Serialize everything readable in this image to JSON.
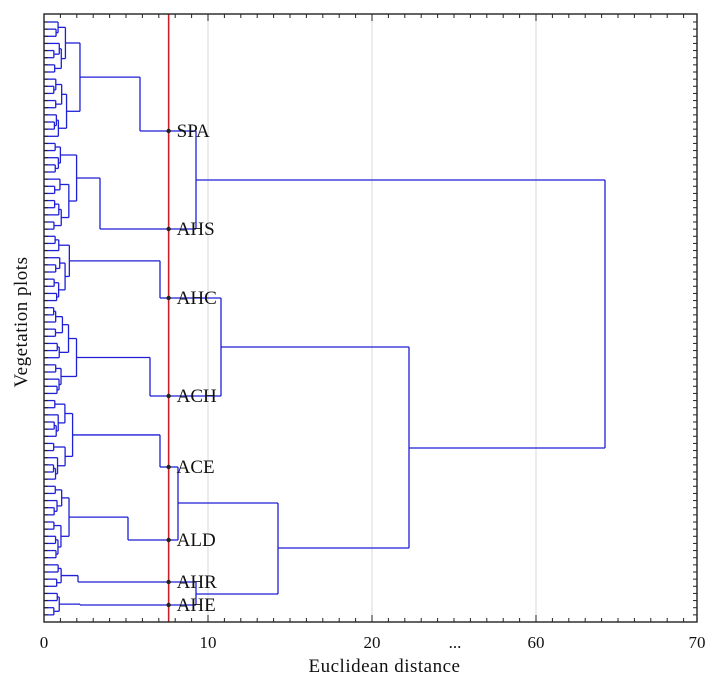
{
  "chart_data": {
    "type": "dendrogram",
    "title": "",
    "xlabel": "Euclidean distance",
    "ylabel": "Vegetation plots",
    "x_tick_labels": [
      "0",
      "10",
      "20",
      "...",
      "60",
      "70"
    ],
    "xlim": [
      0,
      70
    ],
    "cut_distance": 7.6,
    "leaf_count": 84,
    "clusters": [
      {
        "name": "SPA"
      },
      {
        "name": "AHS"
      },
      {
        "name": "AHC"
      },
      {
        "name": "ACH"
      },
      {
        "name": "ACE"
      },
      {
        "name": "ALD"
      },
      {
        "name": "AHR"
      },
      {
        "name": "AHE"
      }
    ],
    "grid": "vertical",
    "colors": {
      "tree": "#1f1fd6",
      "cut_line": "#c8202a",
      "grid": "#d8d8d8",
      "frame": "#222222"
    }
  }
}
